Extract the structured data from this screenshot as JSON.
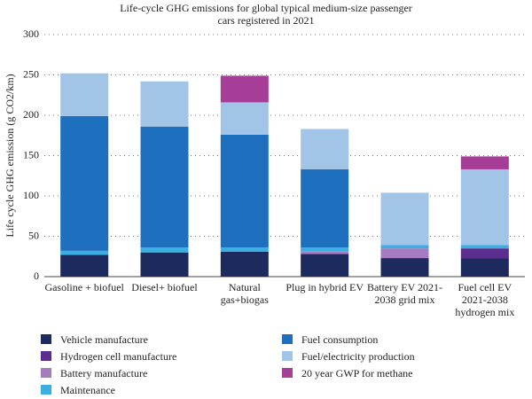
{
  "chart_data": {
    "type": "stacked_bar",
    "title": "Life-cycle GHG emissions for global typical medium-size passenger cars registered in 2021",
    "y_label": "Life cycle GHG emission (g CO2/km)",
    "categories": [
      "Gasoline + biofuel",
      "Diesel+ biofuel",
      "Natural gas+biogas",
      "Plug in hybrid EV",
      "Battery EV 2021-2038 grid mix",
      "Fuel cell EV 2021-2038 hydrogen mix"
    ],
    "series": [
      {
        "name": "Vehicle manufacture",
        "color": "#1c2a5e",
        "values": [
          27,
          30,
          31,
          28,
          23,
          23
        ]
      },
      {
        "name": "Hydrogen cell manufacture",
        "color": "#5b2d8e",
        "values": [
          0,
          0,
          0,
          0,
          0,
          12
        ]
      },
      {
        "name": "Battery manufacture",
        "color": "#a77bc0",
        "values": [
          0,
          0,
          0,
          3,
          12,
          0
        ]
      },
      {
        "name": "Maintenance",
        "color": "#3ab0e2",
        "values": [
          5,
          6,
          5,
          5,
          4,
          4
        ]
      },
      {
        "name": "Fuel consumption",
        "color": "#1f6fbf",
        "values": [
          167,
          150,
          140,
          97,
          0,
          0
        ]
      },
      {
        "name": "Fuel/electricity production",
        "color": "#a2c4e6",
        "values": [
          53,
          56,
          40,
          50,
          65,
          94
        ]
      },
      {
        "name": "20 year GWP for methane",
        "color": "#a63d97",
        "values": [
          0,
          0,
          33,
          0,
          0,
          16
        ]
      }
    ],
    "ylim": [
      0,
      300
    ],
    "yticks": [
      0,
      50,
      100,
      150,
      200,
      250,
      300
    ],
    "grid": true
  }
}
